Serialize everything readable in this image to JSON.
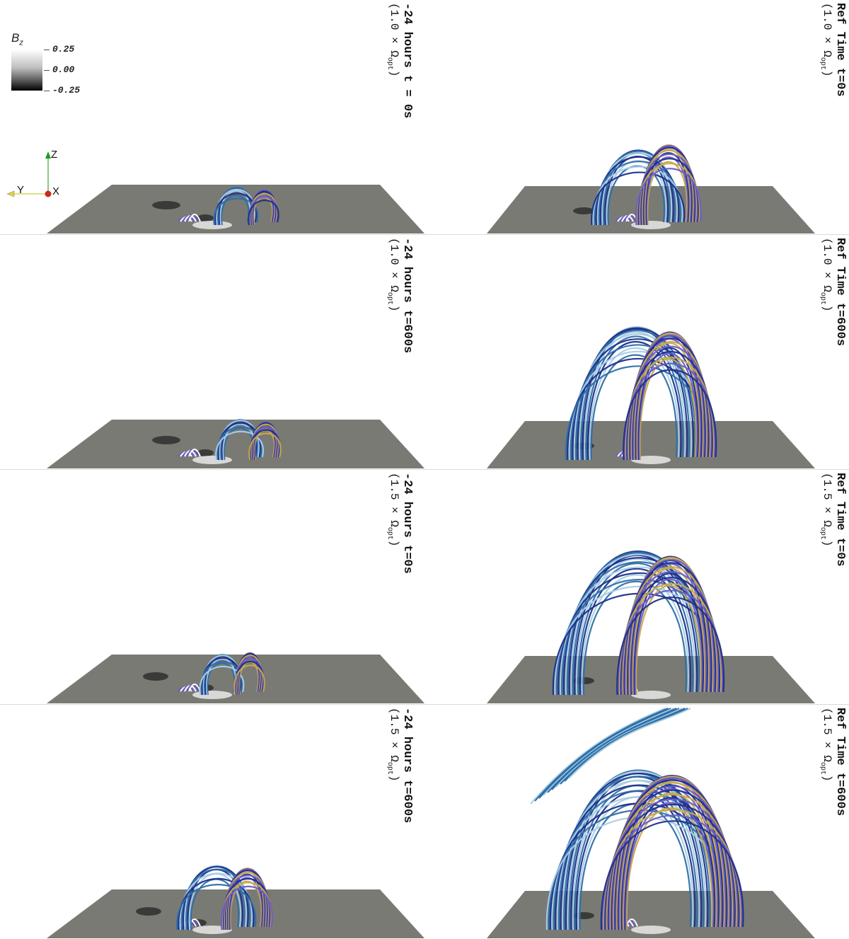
{
  "panels": {
    "left_1": {
      "title": "-24 hours t = 0s",
      "factor": "1.0",
      "omega_sub": "opt"
    },
    "left_2": {
      "title": "-24 hours t=600s",
      "factor": "1.0",
      "omega_sub": "opt"
    },
    "left_3": {
      "title": "-24 hours t=0s",
      "factor": "1.5",
      "omega_sub": "opt"
    },
    "left_4": {
      "title": "-24 hours t=600s",
      "factor": "1.5",
      "omega_sub": "opt"
    },
    "right_1": {
      "title": "Ref Time t=0s",
      "factor": "1.0",
      "omega_sub": "opt"
    },
    "right_2": {
      "title": "Ref Time t=600s",
      "factor": "1.0",
      "omega_sub": "opt"
    },
    "right_3": {
      "title": "Ref Time t=0s",
      "factor": "1.5",
      "omega_sub": "opt"
    },
    "right_4": {
      "title": "Ref Time t=600s",
      "factor": "1.5",
      "omega_sub": "opt"
    }
  },
  "colorbar": {
    "title": "B",
    "title_sub": "z",
    "ticks": [
      "0.25",
      "0.00",
      "-0.25"
    ]
  },
  "axes_triad": {
    "z": "Z",
    "y": "Y",
    "x": "X"
  },
  "colors": {
    "plane": "#7a7a74",
    "loop_blue": "#2e6fa8",
    "loop_light": "#a9cde4",
    "loop_navy": "#1d2f8a",
    "loop_gold": "#c9a94a",
    "loop_violet": "#6a5cc8"
  },
  "icons": [
    "z-axis-arrow-icon",
    "y-axis-arrow-icon",
    "x-axis-dot-icon"
  ]
}
